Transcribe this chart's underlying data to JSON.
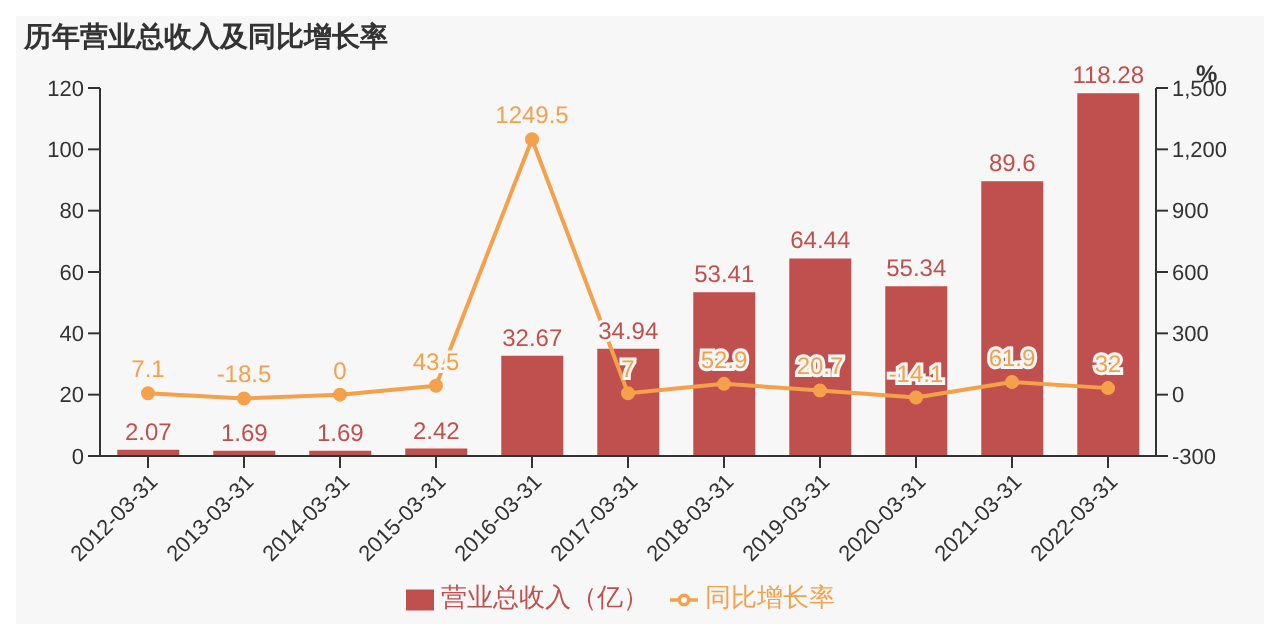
{
  "chart_data": {
    "type": "bar",
    "title": "历年营业总收入及同比增长率",
    "categories": [
      "2012-03-31",
      "2013-03-31",
      "2014-03-31",
      "2015-03-31",
      "2016-03-31",
      "2017-03-31",
      "2018-03-31",
      "2019-03-31",
      "2020-03-31",
      "2021-03-31",
      "2022-03-31"
    ],
    "series": [
      {
        "name": "营业总收入（亿）",
        "color": "#c0504d",
        "values": [
          2.07,
          1.69,
          1.69,
          2.42,
          32.67,
          34.94,
          53.41,
          64.44,
          55.34,
          89.6,
          118.28
        ]
      },
      {
        "name": "同比增长率",
        "type": "line",
        "axis": "y2",
        "color": "#f5a04a",
        "values": [
          7.1,
          -18.5,
          0,
          43.5,
          1249.5,
          7,
          52.9,
          20.7,
          -14.1,
          61.9,
          32
        ]
      }
    ],
    "ylim": [
      0,
      120
    ],
    "yticks": [
      0,
      20,
      40,
      60,
      80,
      100,
      120
    ],
    "y2lim": [
      -300,
      1500
    ],
    "y2ticks": [
      -300,
      0,
      300,
      600,
      900,
      {
        "value": 1200,
        "label": "1,200"
      },
      {
        "value": 1500,
        "label": "1,500"
      }
    ],
    "y2label": "%",
    "data_labels": true,
    "grid": false,
    "legend": "bottom",
    "marker": "circle",
    "line_style": "solid"
  }
}
